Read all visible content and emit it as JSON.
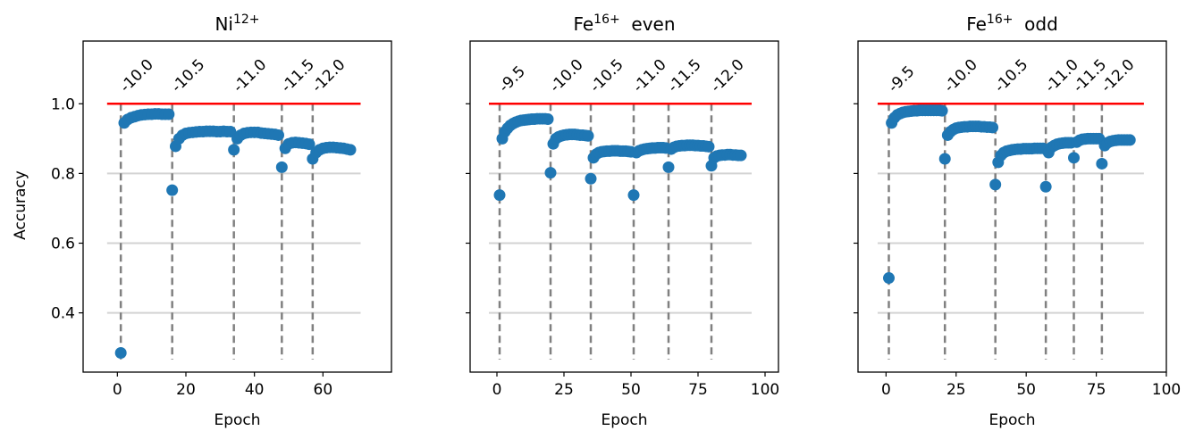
{
  "figure": {
    "ylabel": "Accuracy",
    "reference_line_color": "#ff0000",
    "marker_color": "#1f77b4",
    "vline_color": "#808080",
    "grid_color": "#d3d3d3"
  },
  "chart_data": [
    {
      "type": "scatter",
      "title_base": "Ni",
      "title_sup": "12+",
      "title_suffix": "",
      "xlabel": "Epoch",
      "ylabel": "Accuracy",
      "xlim": [
        -10,
        80
      ],
      "ylim": [
        0.23,
        1.18
      ],
      "xticks": [
        0,
        20,
        40,
        60
      ],
      "yticks": [
        0.4,
        0.6,
        0.8,
        1.0
      ],
      "ytick_labels": [
        "0.4",
        "0.6",
        "0.8",
        "1.0"
      ],
      "show_ytick_labels": true,
      "grid_y": [
        0.4,
        0.6,
        0.8
      ],
      "reference_line": {
        "y": 1.0,
        "x_start": -3,
        "x_end": 71
      },
      "vlines": [
        {
          "x": 1,
          "label": "-10.0"
        },
        {
          "x": 16,
          "label": "-10.5"
        },
        {
          "x": 34,
          "label": "-11.0"
        },
        {
          "x": 48,
          "label": "-11.5"
        },
        {
          "x": 57,
          "label": "-12.0"
        }
      ],
      "segments": [
        {
          "x_start": 1,
          "values": [
            0.285,
            0.945,
            0.955,
            0.96,
            0.963,
            0.966,
            0.968,
            0.969,
            0.97,
            0.97,
            0.971,
            0.971,
            0.97,
            0.97,
            0.97
          ]
        },
        {
          "x_start": 16,
          "values": [
            0.752,
            0.878,
            0.9,
            0.91,
            0.915,
            0.917,
            0.918,
            0.919,
            0.92,
            0.92,
            0.921,
            0.921,
            0.921,
            0.92,
            0.92,
            0.921,
            0.92,
            0.92
          ]
        },
        {
          "x_start": 34,
          "values": [
            0.868,
            0.9,
            0.91,
            0.915,
            0.917,
            0.918,
            0.918,
            0.918,
            0.916,
            0.915,
            0.914,
            0.913,
            0.912,
            0.91
          ]
        },
        {
          "x_start": 48,
          "values": [
            0.818,
            0.872,
            0.885,
            0.888,
            0.889,
            0.888,
            0.887,
            0.886,
            0.884
          ]
        },
        {
          "x_start": 57,
          "values": [
            0.842,
            0.86,
            0.868,
            0.872,
            0.874,
            0.875,
            0.875,
            0.874,
            0.873,
            0.872,
            0.87,
            0.868
          ]
        }
      ]
    },
    {
      "type": "scatter",
      "title_base": "Fe",
      "title_sup": "16+",
      "title_suffix": "even",
      "xlabel": "Epoch",
      "ylabel": "",
      "xlim": [
        -10,
        105
      ],
      "ylim": [
        0.23,
        1.18
      ],
      "xticks": [
        0,
        25,
        50,
        75,
        100
      ],
      "yticks": [
        0.4,
        0.6,
        0.8,
        1.0
      ],
      "ytick_labels": [
        "0.4",
        "0.6",
        "0.8",
        "1.0"
      ],
      "show_ytick_labels": false,
      "grid_y": [
        0.4,
        0.6,
        0.8
      ],
      "reference_line": {
        "y": 1.0,
        "x_start": -3,
        "x_end": 95
      },
      "vlines": [
        {
          "x": 1,
          "label": "-9.5"
        },
        {
          "x": 20,
          "label": "-10.0"
        },
        {
          "x": 35,
          "label": "-10.5"
        },
        {
          "x": 51,
          "label": "-11.0"
        },
        {
          "x": 64,
          "label": "-11.5"
        },
        {
          "x": 80,
          "label": "-12.0"
        }
      ],
      "segments": [
        {
          "x_start": 1,
          "values": [
            0.738,
            0.9,
            0.92,
            0.93,
            0.938,
            0.943,
            0.947,
            0.95,
            0.952,
            0.953,
            0.954,
            0.955,
            0.956,
            0.956,
            0.957,
            0.957,
            0.957,
            0.957,
            0.956
          ]
        },
        {
          "x_start": 20,
          "values": [
            0.802,
            0.885,
            0.9,
            0.905,
            0.908,
            0.91,
            0.911,
            0.912,
            0.912,
            0.912,
            0.911,
            0.91,
            0.91,
            0.909,
            0.908
          ]
        },
        {
          "x_start": 35,
          "values": [
            0.785,
            0.845,
            0.855,
            0.86,
            0.862,
            0.863,
            0.864,
            0.864,
            0.865,
            0.865,
            0.865,
            0.864,
            0.864,
            0.864,
            0.863,
            0.862
          ]
        },
        {
          "x_start": 51,
          "values": [
            0.738,
            0.86,
            0.865,
            0.868,
            0.87,
            0.871,
            0.872,
            0.873,
            0.873,
            0.874,
            0.874,
            0.874,
            0.873
          ]
        },
        {
          "x_start": 64,
          "values": [
            0.818,
            0.87,
            0.875,
            0.878,
            0.879,
            0.88,
            0.88,
            0.881,
            0.881,
            0.881,
            0.88,
            0.88,
            0.879,
            0.879,
            0.878,
            0.877
          ]
        },
        {
          "x_start": 80,
          "values": [
            0.822,
            0.845,
            0.85,
            0.852,
            0.853,
            0.853,
            0.854,
            0.854,
            0.853,
            0.853,
            0.852,
            0.852
          ]
        }
      ]
    },
    {
      "type": "scatter",
      "title_base": "Fe",
      "title_sup": "16+",
      "title_suffix": "odd",
      "xlabel": "Epoch",
      "ylabel": "",
      "xlim": [
        -10,
        100
      ],
      "ylim": [
        0.23,
        1.18
      ],
      "xticks": [
        0,
        25,
        50,
        75,
        100
      ],
      "yticks": [
        0.4,
        0.6,
        0.8,
        1.0
      ],
      "ytick_labels": [
        "0.4",
        "0.6",
        "0.8",
        "1.0"
      ],
      "show_ytick_labels": false,
      "grid_y": [
        0.4,
        0.6,
        0.8
      ],
      "reference_line": {
        "y": 1.0,
        "x_start": -3,
        "x_end": 92
      },
      "vlines": [
        {
          "x": 1,
          "label": "-9.5"
        },
        {
          "x": 21,
          "label": "-10.0"
        },
        {
          "x": 39,
          "label": "-10.5"
        },
        {
          "x": 57,
          "label": "-11.0"
        },
        {
          "x": 67,
          "label": "-11.5"
        },
        {
          "x": 77,
          "label": "-12.0"
        }
      ],
      "segments": [
        {
          "x_start": 1,
          "values": [
            0.5,
            0.945,
            0.96,
            0.968,
            0.972,
            0.975,
            0.977,
            0.978,
            0.979,
            0.98,
            0.98,
            0.981,
            0.981,
            0.981,
            0.981,
            0.981,
            0.981,
            0.981,
            0.981,
            0.98
          ]
        },
        {
          "x_start": 21,
          "values": [
            0.842,
            0.91,
            0.92,
            0.926,
            0.93,
            0.932,
            0.933,
            0.934,
            0.934,
            0.935,
            0.935,
            0.935,
            0.935,
            0.934,
            0.934,
            0.933,
            0.933,
            0.932
          ]
        },
        {
          "x_start": 39,
          "values": [
            0.768,
            0.832,
            0.852,
            0.86,
            0.864,
            0.866,
            0.868,
            0.869,
            0.87,
            0.87,
            0.871,
            0.871,
            0.871,
            0.871,
            0.872,
            0.872,
            0.872,
            0.872
          ]
        },
        {
          "x_start": 57,
          "values": [
            0.762,
            0.86,
            0.875,
            0.88,
            0.884,
            0.886,
            0.887,
            0.888,
            0.888,
            0.888
          ]
        },
        {
          "x_start": 67,
          "values": [
            0.845,
            0.89,
            0.895,
            0.898,
            0.899,
            0.9,
            0.9,
            0.9,
            0.9,
            0.9
          ]
        },
        {
          "x_start": 77,
          "values": [
            0.828,
            0.88,
            0.888,
            0.892,
            0.894,
            0.895,
            0.896,
            0.896,
            0.896,
            0.896,
            0.896
          ]
        }
      ]
    }
  ]
}
